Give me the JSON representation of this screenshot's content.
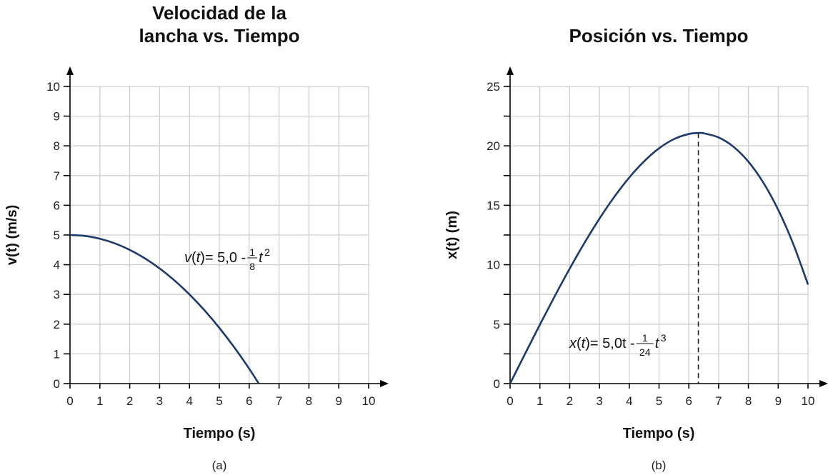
{
  "chart_data": [
    {
      "type": "line",
      "title_lines": [
        "Velocidad de la",
        "lancha vs. Tiempo"
      ],
      "xlabel": "Tiempo (s)",
      "ylabel": "v(t) (m/s)",
      "panel_label": "(a)",
      "xlim": [
        0,
        10
      ],
      "ylim": [
        0,
        10
      ],
      "xticks": [
        0,
        1,
        2,
        3,
        4,
        5,
        6,
        7,
        8,
        9,
        10
      ],
      "yticks": [
        0,
        1,
        2,
        3,
        4,
        5,
        6,
        7,
        8,
        9,
        10
      ],
      "grid": true,
      "equation": {
        "lhs_var": "v",
        "lhs_arg": "t",
        "rhs": "= 5,0 - ",
        "num": "1",
        "den": "8",
        "var": "t",
        "exp": "2"
      },
      "x": [
        0,
        0.5,
        1,
        1.5,
        2,
        2.5,
        3,
        3.5,
        4,
        4.5,
        5,
        5.5,
        6,
        6.32
      ],
      "y": [
        5,
        4.969,
        4.875,
        4.719,
        4.5,
        4.219,
        3.875,
        3.469,
        3,
        2.469,
        1.875,
        1.219,
        0.5,
        0
      ],
      "color": "#1e3a6b"
    },
    {
      "type": "line",
      "title_lines": [
        "Posición vs. Tiempo"
      ],
      "xlabel": "Tiempo (s)",
      "ylabel": "x(t) (m)",
      "panel_label": "(b)",
      "xlim": [
        0,
        10
      ],
      "ylim": [
        0,
        25
      ],
      "xticks": [
        0,
        1,
        2,
        3,
        4,
        5,
        6,
        7,
        8,
        9,
        10
      ],
      "yticks": [
        0,
        5,
        10,
        15,
        20,
        25
      ],
      "grid_step_y": 2.5,
      "grid": true,
      "equation": {
        "lhs_var": "x",
        "lhs_arg": "t",
        "rhs": "= 5,0t - ",
        "num": "1",
        "den": "24",
        "var": "t",
        "exp": "3"
      },
      "x": [
        0,
        0.5,
        1,
        1.5,
        2,
        2.5,
        3,
        3.5,
        4,
        4.5,
        5,
        5.5,
        6,
        6.32,
        6.5,
        7,
        7.5,
        8,
        8.5,
        9,
        9.5,
        10
      ],
      "y": [
        0,
        2.495,
        4.958,
        7.359,
        9.667,
        11.849,
        13.875,
        15.714,
        17.333,
        18.703,
        19.792,
        20.568,
        21,
        21.08,
        21.057,
        20.708,
        19.922,
        18.667,
        16.909,
        14.625,
        11.776,
        8.333
      ],
      "max_marker_x": 6.32,
      "color": "#1e3a6b"
    }
  ]
}
